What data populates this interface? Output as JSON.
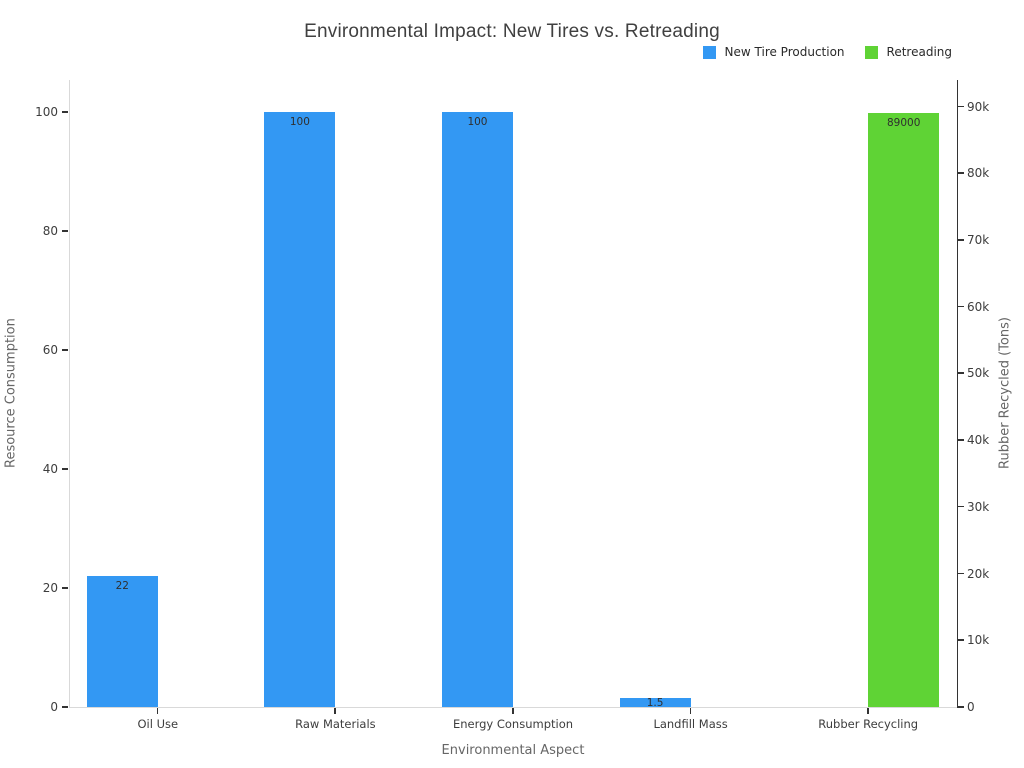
{
  "chart_data": {
    "type": "bar",
    "title": "Environmental Impact: New Tires vs. Retreading",
    "xlabel": "Environmental Aspect",
    "categories": [
      "Oil Use",
      "Raw Materials",
      "Energy Consumption",
      "Landfill Mass",
      "Rubber Recycling"
    ],
    "series": [
      {
        "name": "New Tire Production",
        "color": "#3398F3",
        "axis": "left",
        "values": [
          22,
          100,
          100,
          1.5,
          0
        ],
        "labels": [
          "22",
          "100",
          "100",
          "1.5",
          ""
        ]
      },
      {
        "name": "Retreading",
        "color": "#5FD335",
        "axis": "right",
        "values": [
          0,
          0,
          0,
          0,
          89000
        ],
        "labels": [
          "",
          "",
          "",
          "",
          "89000"
        ]
      }
    ],
    "axes": {
      "left": {
        "label": "Resource Consumption",
        "tick_values": [
          0,
          20,
          40,
          60,
          80,
          100
        ],
        "tick_labels": [
          "0",
          "20",
          "40",
          "60",
          "80",
          "100"
        ],
        "display_max": 105.4
      },
      "right": {
        "label": "Rubber Recycled (Tons)",
        "tick_values": [
          0,
          10000,
          20000,
          30000,
          40000,
          50000,
          60000,
          70000,
          80000,
          90000
        ],
        "tick_labels": [
          "0",
          "10k",
          "20k",
          "30k",
          "40k",
          "50k",
          "60k",
          "70k",
          "80k",
          "90k"
        ],
        "display_max": 94000
      }
    },
    "legend_position": "top-right",
    "grid": false,
    "background": "#ffffff"
  }
}
